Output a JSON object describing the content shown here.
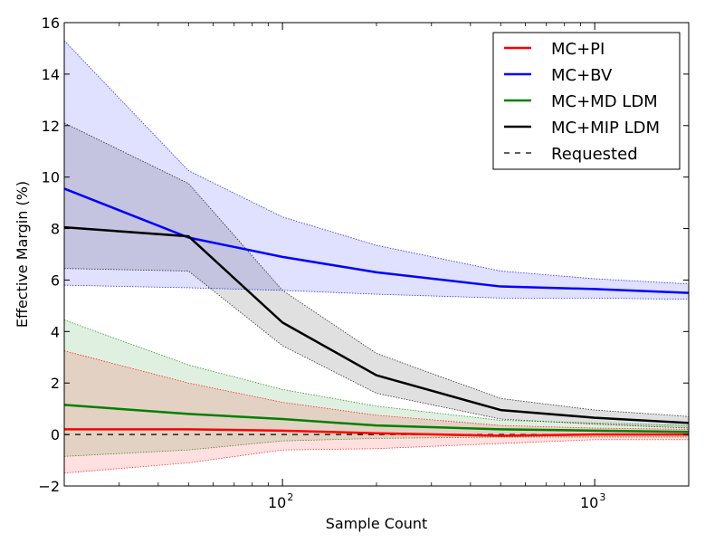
{
  "chart_data": {
    "type": "line",
    "xlabel": "Sample Count",
    "ylabel": "Effective Margin (%)",
    "xscale": "log",
    "xlim": [
      20,
      2000
    ],
    "ylim": [
      -2,
      16
    ],
    "grid": false,
    "legend_position": "top-right",
    "x_ticks": [
      {
        "value": 100,
        "base": "10",
        "exp": "2"
      },
      {
        "value": 1000,
        "base": "10",
        "exp": "3"
      }
    ],
    "y_ticks": [
      {
        "value": -2,
        "label": "−2"
      },
      {
        "value": 0,
        "label": "0"
      },
      {
        "value": 2,
        "label": "2"
      },
      {
        "value": 4,
        "label": "4"
      },
      {
        "value": 6,
        "label": "6"
      },
      {
        "value": 8,
        "label": "8"
      },
      {
        "value": 10,
        "label": "10"
      },
      {
        "value": 12,
        "label": "12"
      },
      {
        "value": 14,
        "label": "14"
      },
      {
        "value": 16,
        "label": "16"
      }
    ],
    "x": [
      20,
      50,
      100,
      200,
      500,
      1000,
      2000
    ],
    "series": [
      {
        "name": "MC+BV",
        "color": "#0000ff",
        "values": [
          9.55,
          7.65,
          6.9,
          6.3,
          5.75,
          5.65,
          5.5
        ],
        "upper": [
          15.3,
          10.25,
          8.45,
          7.35,
          6.35,
          6.05,
          5.85
        ],
        "lower": [
          5.8,
          5.7,
          5.6,
          5.45,
          5.3,
          5.3,
          5.25
        ]
      },
      {
        "name": "MC+MIP LDM",
        "color": "#000000",
        "values": [
          8.05,
          7.7,
          4.35,
          2.3,
          0.95,
          0.65,
          0.45
        ],
        "upper": [
          12.1,
          9.75,
          5.6,
          3.15,
          1.4,
          0.95,
          0.7
        ],
        "lower": [
          6.45,
          6.35,
          3.45,
          1.6,
          0.6,
          0.4,
          0.25
        ]
      },
      {
        "name": "MC+MD LDM",
        "color": "#008000",
        "values": [
          1.15,
          0.8,
          0.6,
          0.35,
          0.2,
          0.15,
          0.1
        ],
        "upper": [
          4.45,
          2.7,
          1.75,
          1.1,
          0.55,
          0.45,
          0.35
        ],
        "lower": [
          -0.85,
          -0.6,
          -0.25,
          -0.15,
          -0.1,
          -0.1,
          -0.1
        ]
      },
      {
        "name": "MC+PI",
        "color": "#ff0000",
        "values": [
          0.2,
          0.2,
          0.15,
          0.05,
          -0.05,
          0.0,
          0.0
        ],
        "upper": [
          3.25,
          2.0,
          1.25,
          0.75,
          0.35,
          0.25,
          0.2
        ],
        "lower": [
          -1.5,
          -1.1,
          -0.6,
          -0.55,
          -0.35,
          -0.2,
          -0.2
        ]
      },
      {
        "name": "Requested",
        "color": "#000000",
        "dashed": true,
        "values": [
          0,
          0,
          0,
          0,
          0,
          0,
          0
        ]
      }
    ],
    "legend": [
      {
        "label": "MC+PI",
        "color": "#ff0000",
        "dashed": false
      },
      {
        "label": "MC+BV",
        "color": "#0000ff",
        "dashed": false
      },
      {
        "label": "MC+MD LDM",
        "color": "#008000",
        "dashed": false
      },
      {
        "label": "MC+MIP LDM",
        "color": "#000000",
        "dashed": false
      },
      {
        "label": "Requested",
        "color": "#000000",
        "dashed": true
      }
    ]
  }
}
